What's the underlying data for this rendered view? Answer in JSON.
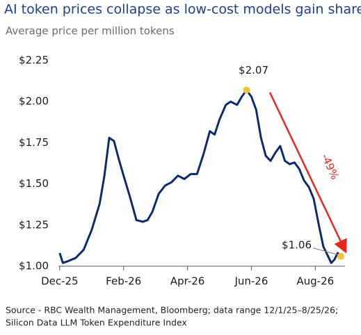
{
  "chart_data": {
    "type": "line",
    "title": "AI token prices collapse as low-cost models gain share",
    "subtitle": "Average price per million tokens",
    "source": [
      "Source - RBC Wealth Management, Bloomberg; data range 12/1/25–8/25/26;",
      "Silicon Data LLM Token Expenditure Index"
    ],
    "color": "#0d2a6e",
    "x": [
      0,
      0.1,
      0.25,
      0.5,
      0.75,
      1.0,
      1.25,
      1.4,
      1.55,
      1.7,
      1.85,
      2.0,
      2.2,
      2.4,
      2.6,
      2.75,
      2.9,
      3.1,
      3.3,
      3.5,
      3.7,
      3.9,
      4.1,
      4.3,
      4.5,
      4.7,
      4.85,
      5.0,
      5.2,
      5.35,
      5.55,
      5.7,
      5.85,
      6.0,
      6.15,
      6.3,
      6.45,
      6.6,
      6.75,
      6.9,
      7.05,
      7.2,
      7.35,
      7.5,
      7.65,
      7.8,
      7.95,
      8.1,
      8.25,
      8.4,
      8.5,
      8.6,
      8.7,
      8.8
    ],
    "values": [
      1.08,
      1.02,
      1.03,
      1.05,
      1.1,
      1.22,
      1.38,
      1.55,
      1.78,
      1.76,
      1.65,
      1.55,
      1.42,
      1.28,
      1.27,
      1.28,
      1.33,
      1.44,
      1.49,
      1.51,
      1.55,
      1.53,
      1.56,
      1.56,
      1.68,
      1.82,
      1.8,
      1.89,
      1.98,
      2.0,
      1.98,
      2.03,
      2.07,
      2.03,
      1.95,
      1.78,
      1.67,
      1.64,
      1.69,
      1.73,
      1.64,
      1.62,
      1.63,
      1.59,
      1.52,
      1.48,
      1.41,
      1.26,
      1.12,
      1.06,
      1.02,
      1.04,
      1.08,
      1.06
    ],
    "xlim": [
      -0.04,
      8.93
    ],
    "xticks": [
      {
        "value": 0,
        "label": "Dec-25"
      },
      {
        "value": 2,
        "label": "Feb-26"
      },
      {
        "value": 4,
        "label": "Apr-26"
      },
      {
        "value": 6,
        "label": "Jun-26"
      },
      {
        "value": 8,
        "label": "Aug-26"
      }
    ],
    "ylim": [
      1.0,
      2.25
    ],
    "yticks": [
      {
        "value": 1.0,
        "label": "$1.00"
      },
      {
        "value": 1.25,
        "label": "$1.25"
      },
      {
        "value": 1.5,
        "label": "$1.50"
      },
      {
        "value": 1.75,
        "label": "$1.75"
      },
      {
        "value": 2.0,
        "label": "$2.00"
      },
      {
        "value": 2.25,
        "label": "$2.25"
      }
    ],
    "highlights": [
      {
        "x": 5.85,
        "value": 2.07,
        "label": "$2.07"
      },
      {
        "x": 8.8,
        "value": 1.06,
        "label": "$1.06"
      }
    ],
    "highlight_color": "#f3c13a",
    "trend_label": "-49%",
    "trend_color": "#e8261c"
  }
}
